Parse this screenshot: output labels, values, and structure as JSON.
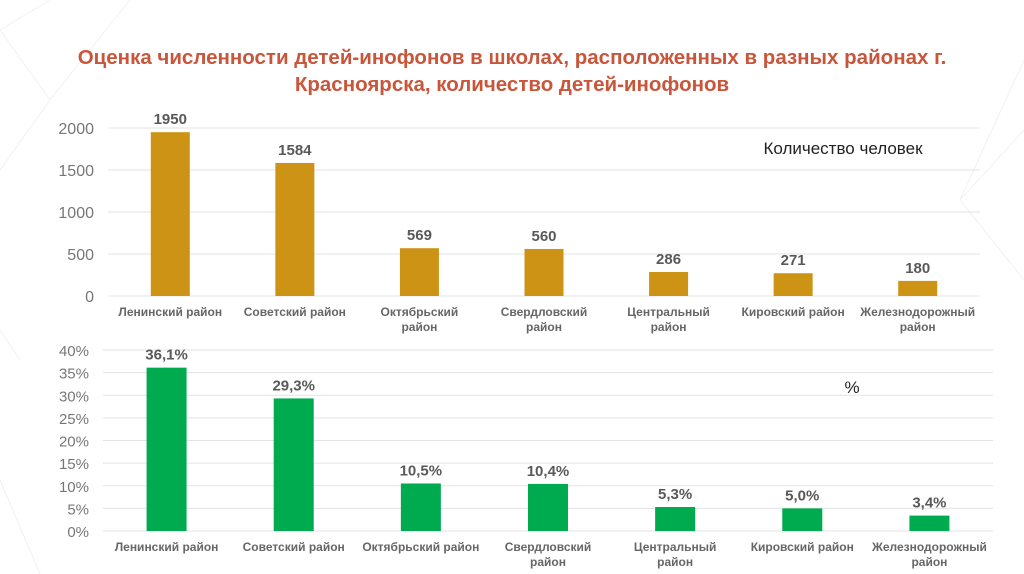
{
  "title": "Оценка численности детей-инофонов в школах, расположенных в разных районах г. Красноярска, количество детей-инофонов",
  "colors": {
    "title": "#c9553a",
    "bar_count": "#cc9314",
    "bar_percent": "#00aa4f",
    "text": "#595959",
    "grid": "#e3e3e3"
  },
  "chart_data": [
    {
      "type": "bar",
      "title": "",
      "annotation": "Количество человек",
      "categories": [
        "Ленинский район",
        "Советский район",
        "Октябрьский район",
        "Свердловский район",
        "Центральный район",
        "Кировский район",
        "Железнодорожный район"
      ],
      "category_lines": [
        [
          "Ленинский район"
        ],
        [
          "Советский район"
        ],
        [
          "Октябрьский",
          "район"
        ],
        [
          "Свердловский",
          "район"
        ],
        [
          "Центральный",
          "район"
        ],
        [
          "Кировский район"
        ],
        [
          "Железнодорожный",
          "район"
        ]
      ],
      "values": [
        1950,
        1584,
        569,
        560,
        286,
        271,
        180
      ],
      "data_labels": [
        "1950",
        "1584",
        "569",
        "560",
        "286",
        "271",
        "180"
      ],
      "yticks": [
        "0",
        "500",
        "1000",
        "1500",
        "2000"
      ],
      "ytick_values": [
        0,
        500,
        1000,
        1500,
        2000
      ],
      "ylim": [
        0,
        2000
      ],
      "xlabel": "",
      "ylabel": "",
      "grid": true
    },
    {
      "type": "bar",
      "title": "",
      "annotation": "%",
      "categories": [
        "Ленинский район",
        "Советский район",
        "Октябрьский район",
        "Свердловский район",
        "Центральный район",
        "Кировский район",
        "Железнодорожный район"
      ],
      "category_lines": [
        [
          "Ленинский район"
        ],
        [
          "Советский район"
        ],
        [
          "Октябрьский район"
        ],
        [
          "Свердловский",
          "район"
        ],
        [
          "Центральный",
          "район"
        ],
        [
          "Кировский район"
        ],
        [
          "Железнодорожный",
          "район"
        ]
      ],
      "values": [
        36.1,
        29.3,
        10.5,
        10.4,
        5.3,
        5.0,
        3.4
      ],
      "data_labels": [
        "36,1%",
        "29,3%",
        "10,5%",
        "10,4%",
        "5,3%",
        "5,0%",
        "3,4%"
      ],
      "yticks": [
        "0%",
        "5%",
        "10%",
        "15%",
        "20%",
        "25%",
        "30%",
        "35%",
        "40%"
      ],
      "ytick_values": [
        0,
        5,
        10,
        15,
        20,
        25,
        30,
        35,
        40
      ],
      "ylim": [
        0,
        40
      ],
      "xlabel": "",
      "ylabel": "",
      "grid": true
    }
  ]
}
